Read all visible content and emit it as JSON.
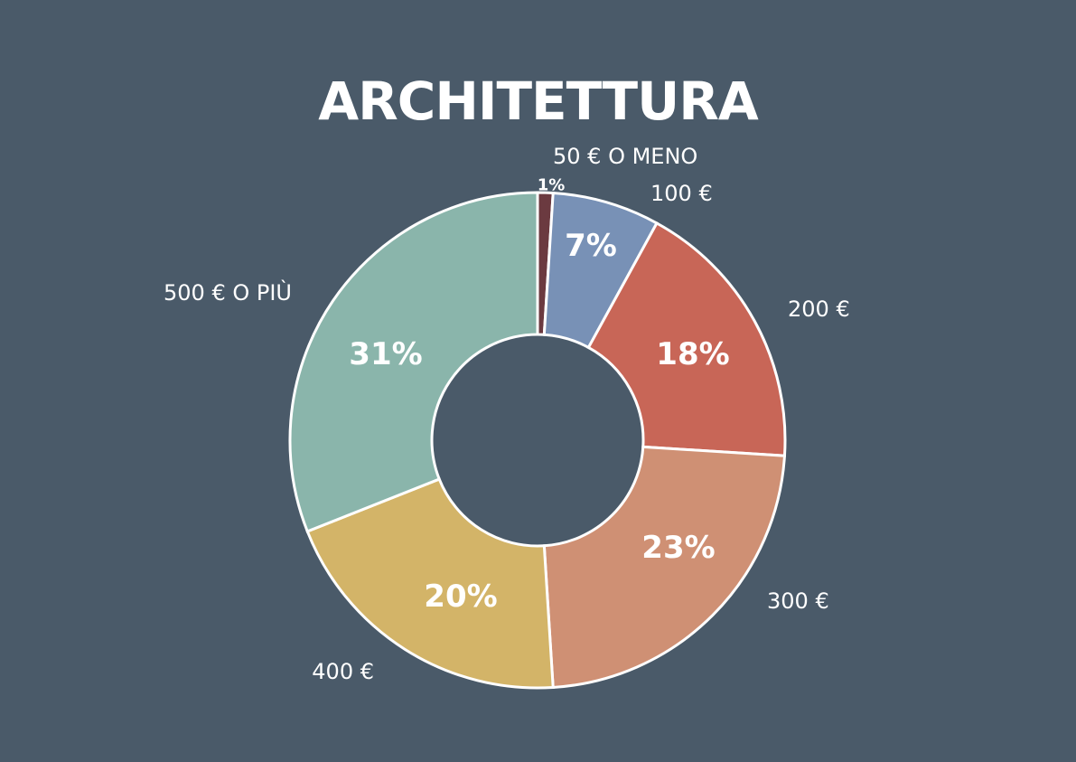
{
  "title": "ARCHITETTURA",
  "chart_data": {
    "type": "pie",
    "title": "ARCHITETTURA",
    "categories": [
      "50 € O MENO",
      "100 €",
      "200 €",
      "300 €",
      "400 €",
      "500 € O PIÙ"
    ],
    "values": [
      1,
      7,
      18,
      23,
      20,
      31
    ],
    "value_labels": [
      "1%",
      "7%",
      "18%",
      "23%",
      "20%",
      "31%"
    ],
    "colors": [
      "#6b3a40",
      "#7891b6",
      "#c86657",
      "#cf9074",
      "#d3b468",
      "#8ab5ab"
    ],
    "donut": true,
    "legend": "none"
  }
}
